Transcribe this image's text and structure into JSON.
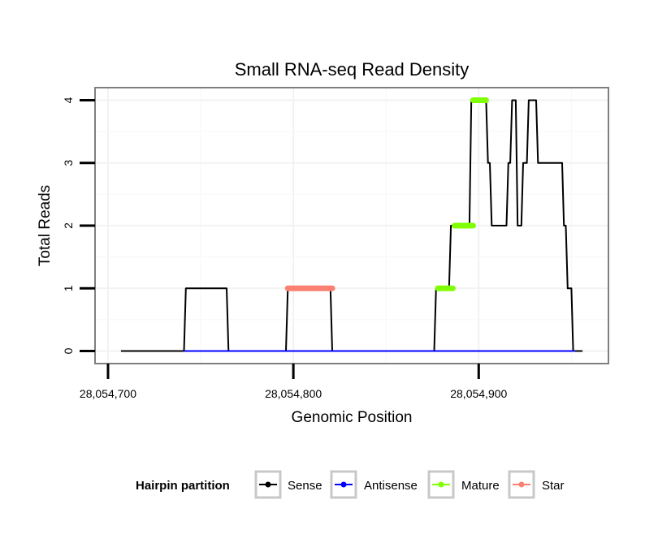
{
  "chart_data": {
    "type": "line",
    "title": "Small RNA-seq Read Density",
    "xlabel": "Genomic Position",
    "ylabel": "Total Reads",
    "xlim": [
      28054693,
      28054970
    ],
    "ylim": [
      -0.2,
      4.2
    ],
    "x_ticks": [
      28054700,
      28054800,
      28054900
    ],
    "x_tick_labels": [
      "28,054,700",
      "28,054,800",
      "28,054,900"
    ],
    "y_ticks": [
      0,
      1,
      2,
      3,
      4
    ],
    "y_tick_labels": [
      "0",
      "1",
      "2",
      "3",
      "4"
    ],
    "grid": true,
    "legend": {
      "title": "Hairpin partition",
      "position": "bottom",
      "entries": [
        {
          "label": "Sense",
          "color": "#000000"
        },
        {
          "label": "Antisense",
          "color": "#0000ff"
        },
        {
          "label": "Mature",
          "color": "#7fff00"
        },
        {
          "label": "Star",
          "color": "#fa8072"
        }
      ]
    },
    "series": [
      {
        "name": "Sense",
        "color": "#000000",
        "x": [
          28054707,
          28054741,
          28054742,
          28054764,
          28054765,
          28054796,
          28054797,
          28054820,
          28054821,
          28054876,
          28054877,
          28054884,
          28054885,
          28054895,
          28054896,
          28054904,
          28054905,
          28054906,
          28054907,
          28054915,
          28054916,
          28054917,
          28054918,
          28054920,
          28054921,
          28054923,
          28054924,
          28054926,
          28054927,
          28054931,
          28054932,
          28054934,
          28054935,
          28054945,
          28054946,
          28054947,
          28054948,
          28054950,
          28054951,
          28054956
        ],
        "y": [
          0,
          0,
          1,
          1,
          0,
          0,
          1,
          1,
          0,
          0,
          1,
          1,
          2,
          2,
          4,
          4,
          3,
          3,
          2,
          2,
          3,
          3,
          4,
          4,
          2,
          2,
          3,
          3,
          4,
          4,
          3,
          3,
          3,
          3,
          2,
          2,
          1,
          1,
          0,
          0
        ]
      },
      {
        "name": "Antisense",
        "color": "#0000ff",
        "x": [
          28054741,
          28054952
        ],
        "y": [
          0,
          0
        ]
      },
      {
        "name": "Mature",
        "color": "#7fff00",
        "segments": [
          {
            "x": [
              28054878,
              28054886
            ],
            "y": 1
          },
          {
            "x": [
              28054887,
              28054897
            ],
            "y": 2
          },
          {
            "x": [
              28054897,
              28054904
            ],
            "y": 4
          }
        ]
      },
      {
        "name": "Star",
        "color": "#fa8072",
        "segments": [
          {
            "x": [
              28054797,
              28054821
            ],
            "y": 1
          }
        ]
      }
    ]
  }
}
